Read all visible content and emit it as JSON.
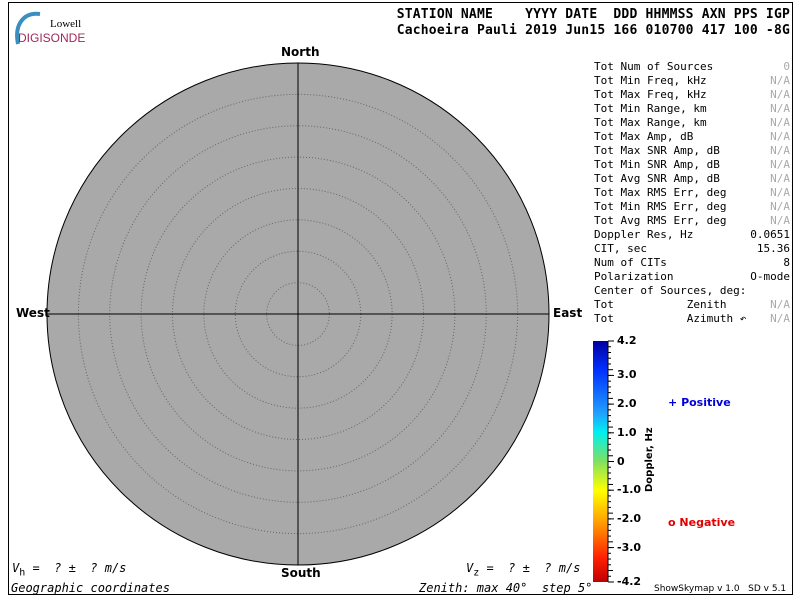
{
  "logo": {
    "line1": "Lowell",
    "line2": "DIGISONDE"
  },
  "header": {
    "labels": "STATION NAME    YYYY DATE  DDD HHMMSS AXN PPS IGP",
    "values": "Cachoeira Pauli 2019 Jun15 166 010700 417 100 -8G"
  },
  "stats": [
    {
      "label": "Tot Num of Sources",
      "value": "0",
      "dim": true
    },
    {
      "label": "Tot Min Freq, kHz",
      "value": "N/A",
      "dim": true
    },
    {
      "label": "Tot Max Freq, kHz",
      "value": "N/A",
      "dim": true
    },
    {
      "label": "Tot Min Range, km",
      "value": "N/A",
      "dim": true
    },
    {
      "label": "Tot Max Range, km",
      "value": "N/A",
      "dim": true
    },
    {
      "label": "Tot Max Amp, dB",
      "value": "N/A",
      "dim": true
    },
    {
      "label": "Tot Max SNR Amp, dB",
      "value": "N/A",
      "dim": true
    },
    {
      "label": "Tot Min SNR Amp, dB",
      "value": "N/A",
      "dim": true
    },
    {
      "label": "Tot Avg SNR Amp, dB",
      "value": "N/A",
      "dim": true
    },
    {
      "label": "Tot Max RMS Err, deg",
      "value": "N/A",
      "dim": true
    },
    {
      "label": "Tot Min RMS Err, deg",
      "value": "N/A",
      "dim": true
    },
    {
      "label": "Tot Avg RMS Err, deg",
      "value": "N/A",
      "dim": true
    },
    {
      "label": "Doppler Res, Hz",
      "value": "0.0651",
      "dim": false
    },
    {
      "label": "CIT, sec",
      "value": "15.36",
      "dim": false
    },
    {
      "label": "Num of CITs",
      "value": "8",
      "dim": false
    },
    {
      "label": "Polarization",
      "value": "O-mode",
      "dim": false
    },
    {
      "label": "Center of Sources, deg:",
      "value": "",
      "dim": false
    },
    {
      "label": "Tot           Zenith",
      "value": "N/A",
      "dim": true
    },
    {
      "label": "Tot           Azimuth ↶",
      "value": "N/A",
      "dim": true
    }
  ],
  "chart_data": {
    "type": "polar-scatter",
    "directions": {
      "north": "North",
      "south": "South",
      "east": "East",
      "west": "West"
    },
    "zenith_max_deg": 40,
    "zenith_step_deg": 5,
    "points": [],
    "colorbar": {
      "label": "Doppler, Hz",
      "range": [
        -4.2,
        4.2
      ],
      "ticks": [
        "4.2",
        "3.0",
        "2.0",
        "1.0",
        "0",
        "-1.0",
        "-2.0",
        "-3.0",
        "-4.2"
      ],
      "tick_values": [
        4.2,
        3.0,
        2.0,
        1.0,
        0,
        -1.0,
        -2.0,
        -3.0,
        -4.2
      ]
    },
    "legend": [
      {
        "symbol": "+",
        "label": "Positive",
        "color": "#0000dd"
      },
      {
        "symbol": "o",
        "label": "Negative",
        "color": "#e00000"
      }
    ],
    "plot_color": "#a9a9a9"
  },
  "footer": {
    "vh": "V",
    "vh_sub": "h",
    "vh_value": " =  ? ±  ? m/s",
    "vz": "V",
    "vz_sub": "z",
    "vz_value": " =  ? ±  ? m/s",
    "coords": "Geographic coordinates",
    "zenith": "Zenith: max 40°  step 5°",
    "version": "ShowSkymap v 1.0   SD v 5.1"
  }
}
